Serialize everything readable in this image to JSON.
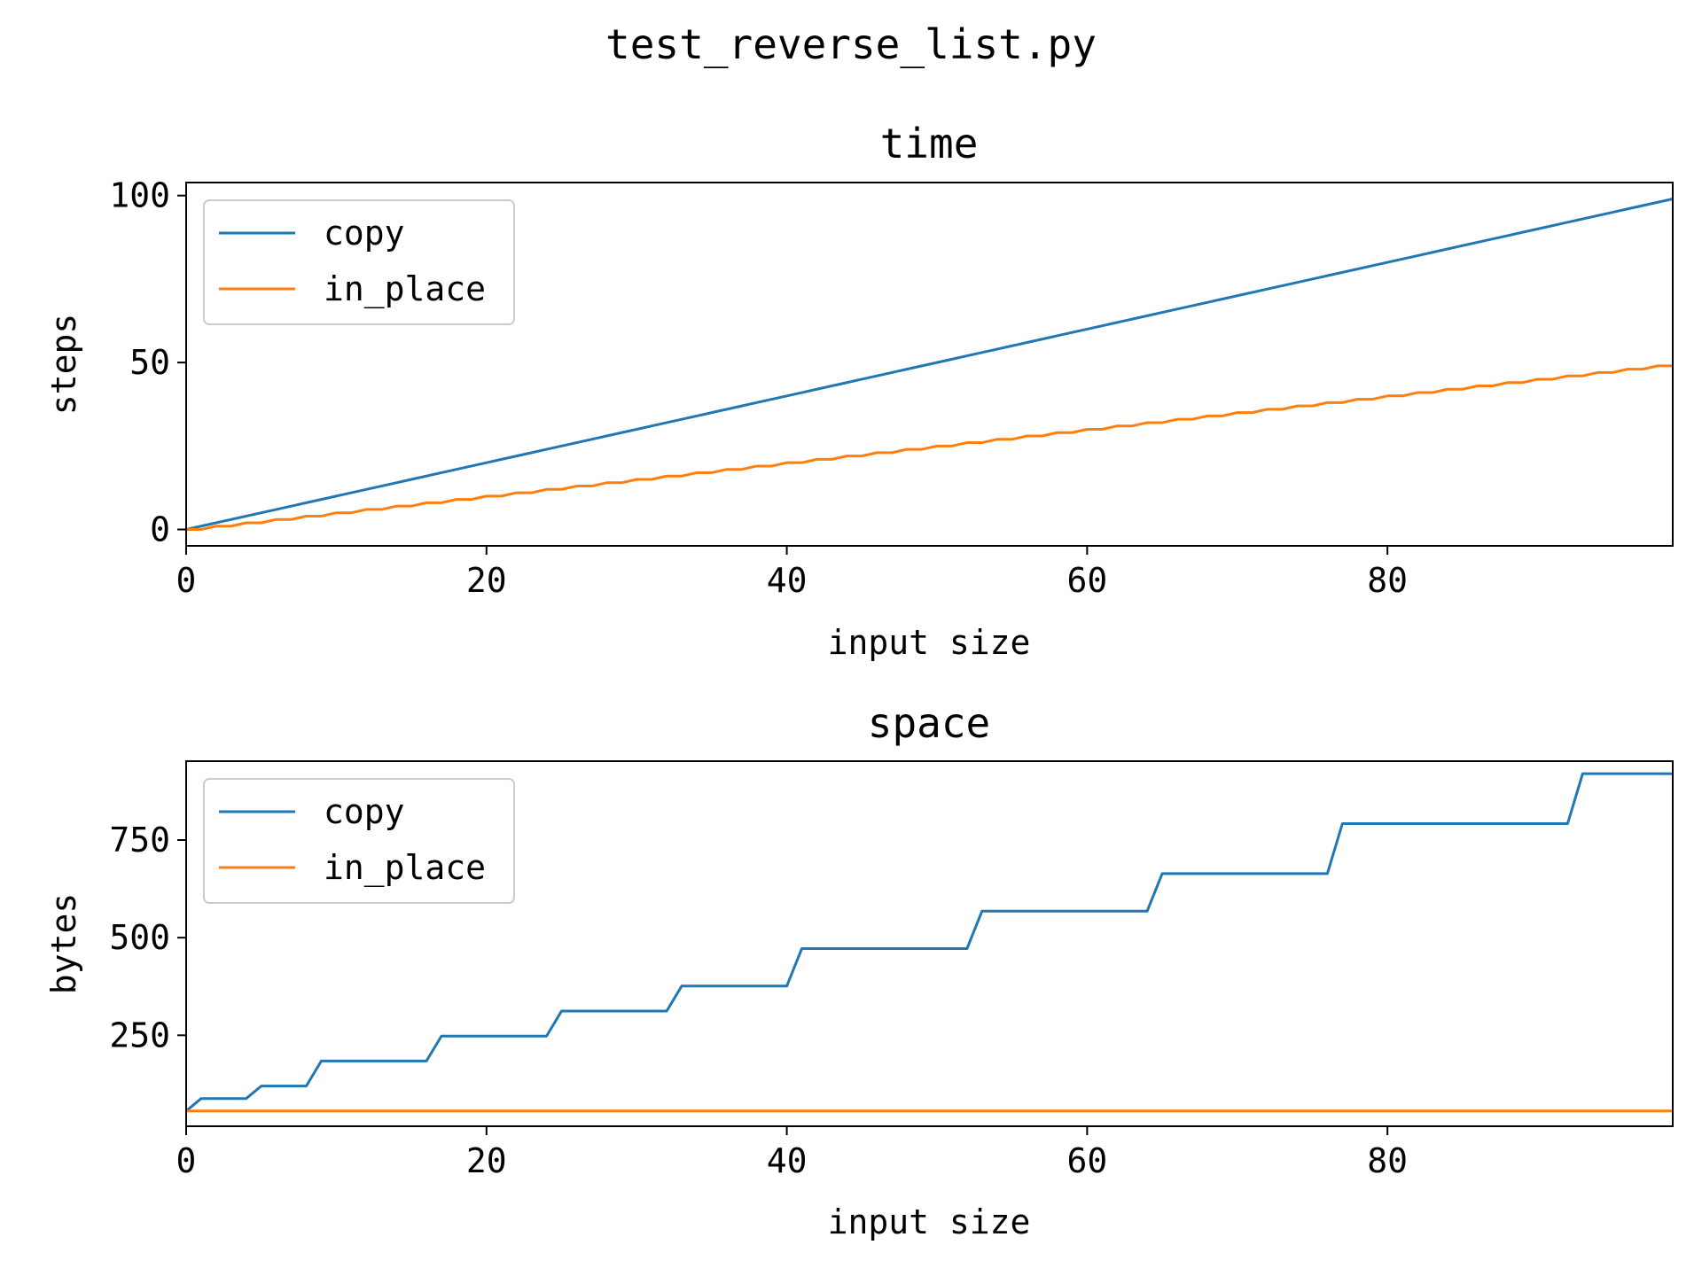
{
  "figure_title": "test_reverse_list.py",
  "colors": {
    "copy": "#1f77b4",
    "in_place": "#ff7f0e"
  },
  "chart_data": [
    {
      "type": "line",
      "title": "time",
      "xlabel": "input size",
      "ylabel": "steps",
      "xlim": [
        0,
        99
      ],
      "ylim": [
        -4.9,
        103.9
      ],
      "xticks": [
        0,
        20,
        40,
        60,
        80
      ],
      "yticks": [
        0,
        50,
        100
      ],
      "grid": false,
      "legend": "upper left",
      "series": [
        {
          "name": "copy",
          "model": "linear",
          "slope": 1,
          "x_max": 99
        },
        {
          "name": "in_place",
          "model": "floor_half",
          "x_max": 99
        }
      ]
    },
    {
      "type": "line",
      "title": "space",
      "xlabel": "input size",
      "ylabel": "bytes",
      "xlim": [
        0,
        99
      ],
      "ylim": [
        17,
        952
      ],
      "xticks": [
        0,
        20,
        40,
        60,
        80
      ],
      "yticks": [
        250,
        500,
        750
      ],
      "grid": false,
      "legend": "upper left",
      "series": [
        {
          "name": "copy",
          "model": "step",
          "x_max": 99,
          "start": 56,
          "steps": [
            [
              1,
              88
            ],
            [
              5,
              120
            ],
            [
              9,
              184
            ],
            [
              17,
              248
            ],
            [
              25,
              312
            ],
            [
              33,
              376
            ],
            [
              41,
              472
            ],
            [
              53,
              568
            ],
            [
              65,
              664
            ],
            [
              77,
              792
            ],
            [
              93,
              920
            ]
          ]
        },
        {
          "name": "in_place",
          "model": "constant",
          "value": 56,
          "x_max": 99
        }
      ]
    }
  ]
}
